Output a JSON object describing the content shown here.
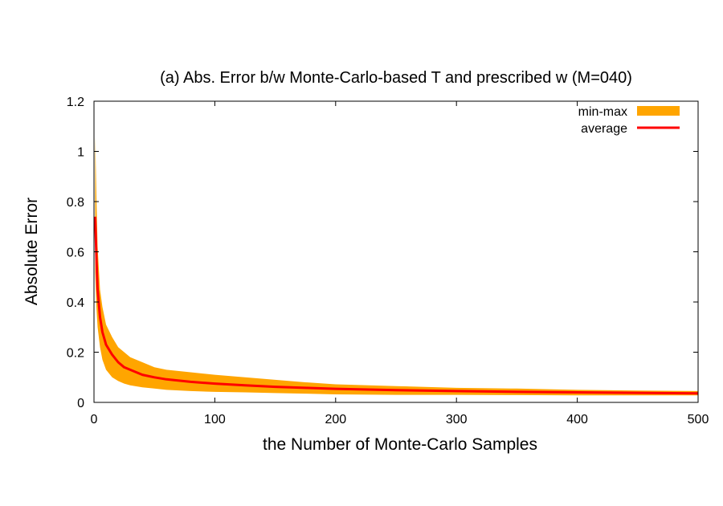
{
  "chart_data": {
    "type": "area",
    "title": "(a) Abs. Error b/w Monte-Carlo-based T and prescribed w (M=040)",
    "xlabel": "the Number of Monte-Carlo Samples",
    "ylabel": "Absolute Error",
    "xlim": [
      0,
      500
    ],
    "ylim": [
      0,
      1.2
    ],
    "xticks": [
      0,
      100,
      200,
      300,
      400,
      500
    ],
    "yticks": [
      0,
      0.2,
      0.4,
      0.6,
      0.8,
      1,
      1.2
    ],
    "xtick_labels": [
      "0",
      "100",
      "200",
      "300",
      "400",
      "500"
    ],
    "ytick_labels": [
      "0",
      "0.2",
      "0.4",
      "0.6",
      "0.8",
      "1",
      "1.2"
    ],
    "grid": false,
    "legend_position": "top-right",
    "series": [
      {
        "name": "min-max",
        "type": "band",
        "color": "#ffa500",
        "x": [
          1,
          2,
          3,
          5,
          7,
          10,
          15,
          20,
          25,
          30,
          40,
          50,
          60,
          80,
          100,
          125,
          150,
          175,
          200,
          250,
          300,
          350,
          400,
          450,
          500
        ],
        "lower": [
          0.52,
          0.38,
          0.3,
          0.22,
          0.17,
          0.13,
          0.1,
          0.085,
          0.075,
          0.068,
          0.06,
          0.055,
          0.05,
          0.045,
          0.042,
          0.04,
          0.037,
          0.035,
          0.032,
          0.03,
          0.03,
          0.029,
          0.028,
          0.028,
          0.028
        ],
        "upper": [
          1.06,
          0.82,
          0.62,
          0.45,
          0.38,
          0.31,
          0.26,
          0.22,
          0.2,
          0.18,
          0.16,
          0.14,
          0.13,
          0.12,
          0.11,
          0.1,
          0.09,
          0.08,
          0.072,
          0.065,
          0.058,
          0.055,
          0.05,
          0.047,
          0.045
        ]
      },
      {
        "name": "average",
        "type": "line",
        "color": "#ff0000",
        "x": [
          1,
          2,
          3,
          5,
          7,
          10,
          15,
          20,
          25,
          30,
          40,
          50,
          60,
          80,
          100,
          125,
          150,
          175,
          200,
          250,
          300,
          350,
          400,
          450,
          500
        ],
        "values": [
          0.74,
          0.58,
          0.45,
          0.34,
          0.28,
          0.23,
          0.19,
          0.16,
          0.14,
          0.13,
          0.11,
          0.1,
          0.092,
          0.082,
          0.075,
          0.068,
          0.062,
          0.058,
          0.054,
          0.049,
          0.045,
          0.042,
          0.04,
          0.038,
          0.036
        ]
      }
    ]
  }
}
